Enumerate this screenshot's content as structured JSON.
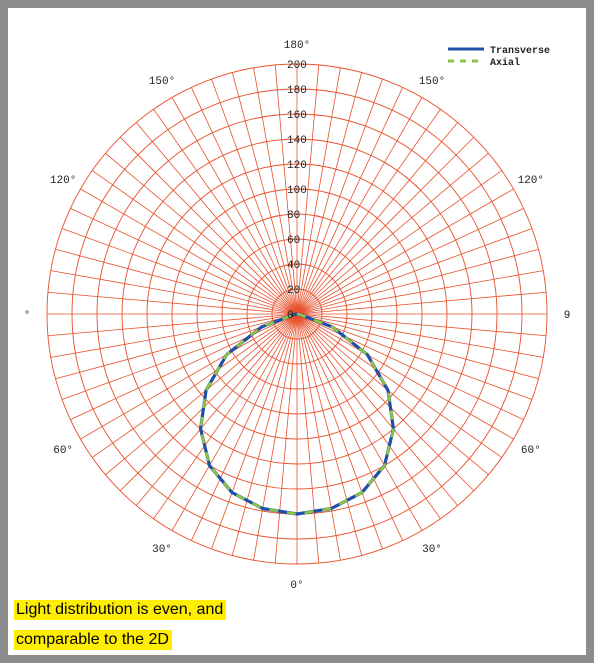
{
  "colors": {
    "frame": "#8c8c8c",
    "grid": "#e8502a",
    "transverse": "#1f4fa8",
    "axial": "#8dc63f",
    "caption_highlight": "#ffee00"
  },
  "caption": {
    "line1": "Light distribution is even, and",
    "line2": "comparable to the 2D"
  },
  "chart_data": {
    "type": "polar",
    "title": "",
    "angle_labels": [
      {
        "angle": 180,
        "text": "180°"
      },
      {
        "angle": 150,
        "text": "150°"
      },
      {
        "angle": -150,
        "text": "150°"
      },
      {
        "angle": 120,
        "text": "120°"
      },
      {
        "angle": -120,
        "text": "120°"
      },
      {
        "angle": 90,
        "text": "°"
      },
      {
        "angle": -90,
        "text": "9"
      },
      {
        "angle": 60,
        "text": "60°"
      },
      {
        "angle": -60,
        "text": "60°"
      },
      {
        "angle": 30,
        "text": "30°"
      },
      {
        "angle": -30,
        "text": "30°"
      },
      {
        "angle": 0,
        "text": "0°"
      }
    ],
    "radial_ticks": [
      0,
      20,
      40,
      60,
      80,
      100,
      120,
      140,
      160,
      180,
      200
    ],
    "radial_tick_labels": [
      "0",
      "20",
      "40",
      "60",
      "80",
      "100",
      "120",
      "140",
      "160",
      "180",
      "200"
    ],
    "rlim": [
      0,
      200
    ],
    "grid": true,
    "spoke_step_deg": 5,
    "legend_position": "top-right",
    "series": [
      {
        "name": "Transverse",
        "style": "solid",
        "angles": [
          -90,
          -80,
          -70,
          -60,
          -50,
          -40,
          -30,
          -20,
          -10,
          0,
          10,
          20,
          30,
          40,
          50,
          60,
          70,
          80,
          90
        ],
        "values": [
          0,
          2,
          30,
          65,
          95,
          120,
          140,
          152,
          158,
          160,
          158,
          152,
          140,
          120,
          95,
          65,
          30,
          2,
          0
        ]
      },
      {
        "name": "Axial",
        "style": "dashed",
        "angles": [
          -90,
          -80,
          -70,
          -60,
          -50,
          -40,
          -30,
          -20,
          -10,
          0,
          10,
          20,
          30,
          40,
          50,
          60,
          70,
          80,
          90
        ],
        "values": [
          0,
          2,
          30,
          65,
          95,
          120,
          140,
          152,
          158,
          160,
          158,
          152,
          140,
          120,
          95,
          65,
          30,
          2,
          0
        ]
      }
    ]
  }
}
